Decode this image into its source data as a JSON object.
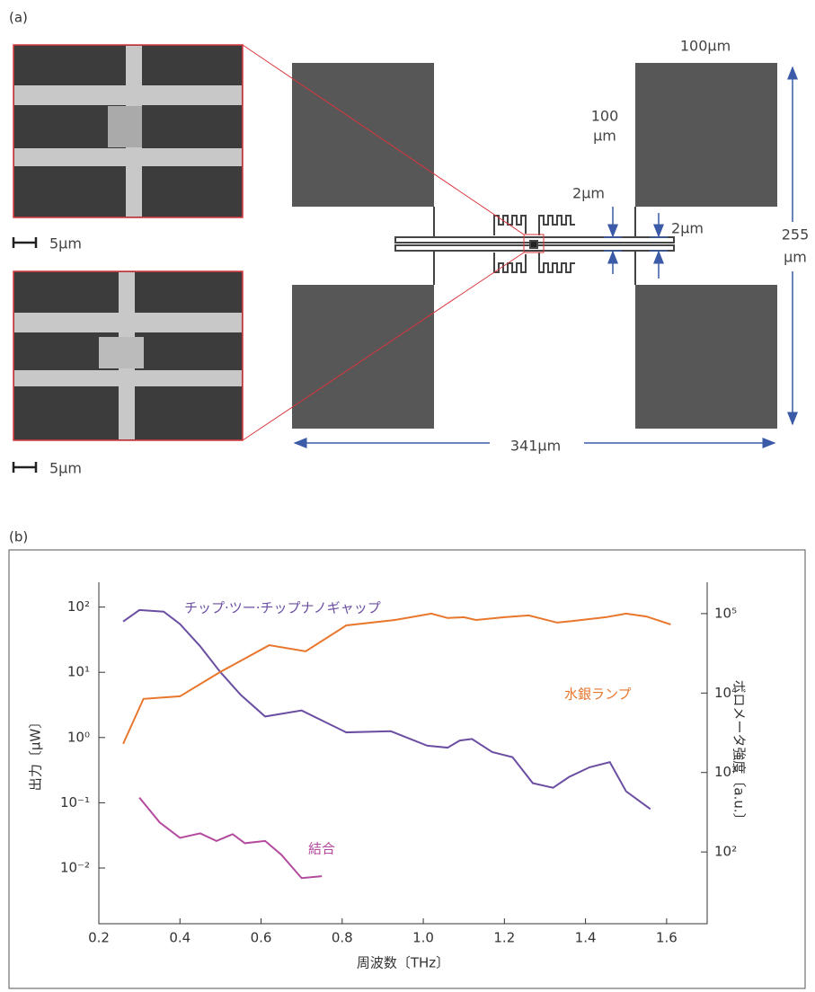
{
  "panel_a": {
    "label": "(a)",
    "scale_bars": [
      "5μm",
      "5μm"
    ],
    "dimensions": {
      "pad_width": "100μm",
      "pad_height_1": "100",
      "pad_height_2": "μm",
      "gap_1": "2μm",
      "gap_2": "2μm",
      "height_1": "255",
      "height_2": "μm",
      "width": "341μm"
    }
  },
  "panel_b": {
    "label": "(b)"
  },
  "chart_data": {
    "type": "line",
    "xlabel": "周波数〔THz〕",
    "ylabel": "出力〔μW〕",
    "y2label": "ボロメータ強度〔a.u.〕",
    "xlim": [
      0.2,
      1.7
    ],
    "xticks": [
      0.2,
      0.4,
      0.6,
      0.8,
      {
        "value": 1,
        "label": "1.0"
      },
      1.2,
      1.4,
      1.6
    ],
    "yscale": "log",
    "ylim": [
      0.0014,
      240
    ],
    "yticks": [
      {
        "value": 100,
        "label": "10²"
      },
      {
        "value": 10,
        "label": "10¹"
      },
      {
        "value": 1,
        "label": "10⁰"
      },
      {
        "value": 0.1,
        "label": "10⁻¹"
      },
      {
        "value": 0.01,
        "label": "10⁻²"
      }
    ],
    "y2scale": "log",
    "y2lim": [
      12.5,
      248000
    ],
    "y2ticks": [
      {
        "value": 100000,
        "label": "10⁵"
      },
      {
        "value": 10000,
        "label": "10⁴"
      },
      {
        "value": 1000,
        "label": "10³"
      },
      {
        "value": 100,
        "label": "10²"
      }
    ],
    "series": [
      {
        "name": "チップ·ツー·チップナノギャップ",
        "color": "#6b4ea2",
        "x": [
          0.26,
          0.3,
          0.36,
          0.4,
          0.45,
          0.5,
          0.55,
          0.61,
          0.7,
          0.81,
          0.92,
          1.01,
          1.06,
          1.09,
          1.12,
          1.17,
          1.22,
          1.27,
          1.32,
          1.36,
          1.41,
          1.46,
          1.5,
          1.56
        ],
        "values": [
          60,
          90,
          85,
          55,
          25,
          10,
          4.5,
          2.1,
          2.6,
          1.2,
          1.25,
          0.75,
          0.7,
          0.9,
          0.95,
          0.6,
          0.5,
          0.2,
          0.17,
          0.25,
          0.35,
          0.42,
          0.15,
          0.08
        ]
      },
      {
        "name": "水銀ランプ",
        "color": "#e8762c",
        "axis": "y2",
        "x": [
          0.26,
          0.31,
          0.4,
          0.5,
          0.62,
          0.71,
          0.81,
          0.93,
          1.02,
          1.06,
          1.1,
          1.13,
          1.2,
          1.26,
          1.33,
          1.39,
          1.45,
          1.5,
          1.55,
          1.61
        ],
        "values": [
          2300,
          8450,
          9100,
          18500,
          40000,
          33500,
          71000,
          83000,
          100000,
          88000,
          90000,
          83000,
          90000,
          95000,
          77000,
          83000,
          90000,
          100000,
          92000,
          73000
        ]
      },
      {
        "name": "結合",
        "color": "#b44a9e",
        "x": [
          0.3,
          0.35,
          0.4,
          0.45,
          0.49,
          0.53,
          0.56,
          0.61,
          0.65,
          0.7,
          0.75
        ],
        "values": [
          0.12,
          0.05,
          0.029,
          0.034,
          0.026,
          0.033,
          0.024,
          0.026,
          0.016,
          0.007,
          0.0075
        ]
      }
    ]
  }
}
